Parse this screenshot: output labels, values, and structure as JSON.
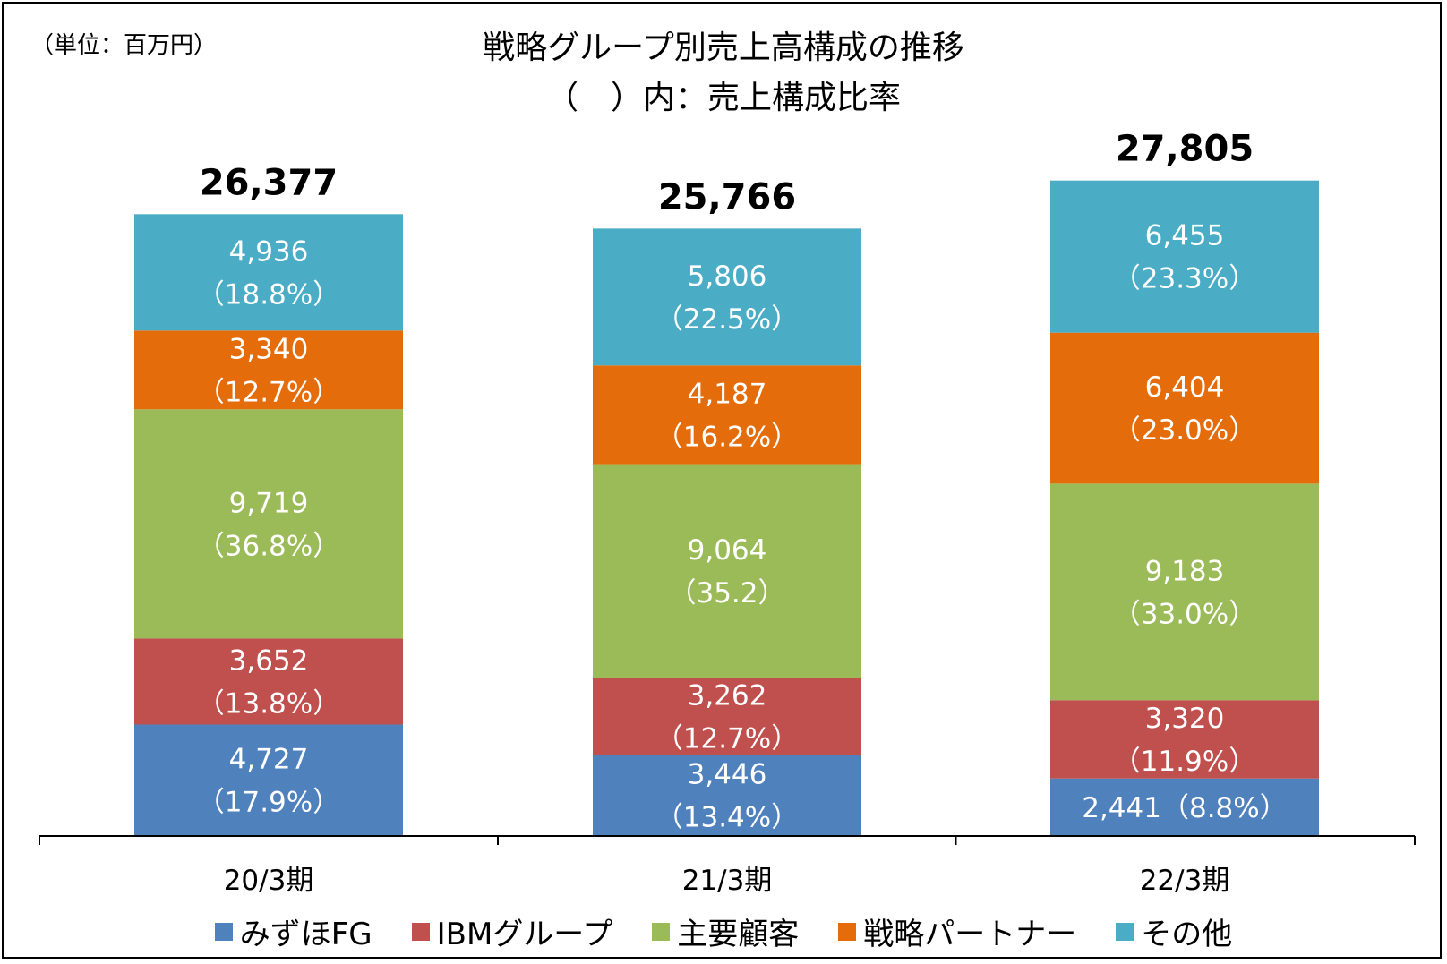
{
  "unit_label": "（単位：百万円）",
  "title_line1": "戦略グループ別売上高構成の推移",
  "title_line2": "（　）内：売上構成比率",
  "chart_data": {
    "type": "bar",
    "stacked": true,
    "categories": [
      "20/3期",
      "21/3期",
      "22/3期"
    ],
    "totals": [
      "26,377",
      "25,766",
      "27,805"
    ],
    "ylim": [
      0,
      28000
    ],
    "legend_position": "bottom",
    "grid": false,
    "series": [
      {
        "name": "みずほFG",
        "color": "#4f81bd",
        "values": [
          4727,
          3446,
          2441
        ],
        "labels": [
          [
            "4,727",
            "（17.9%）"
          ],
          [
            "3,446",
            "（13.4%）"
          ],
          [
            "2,441（8.8%）"
          ]
        ]
      },
      {
        "name": "IBMグループ",
        "color": "#c0504d",
        "values": [
          3652,
          3262,
          3320
        ],
        "labels": [
          [
            "3,652",
            "（13.8%）"
          ],
          [
            "3,262",
            "（12.7%）"
          ],
          [
            "3,320",
            "（11.9%）"
          ]
        ]
      },
      {
        "name": "主要顧客",
        "color": "#9bbb59",
        "values": [
          9719,
          9064,
          9183
        ],
        "labels": [
          [
            "9,719",
            "（36.8%）"
          ],
          [
            "9,064",
            "（35.2）"
          ],
          [
            "9,183",
            "（33.0%）"
          ]
        ]
      },
      {
        "name": "戦略パートナー",
        "color": "#e46c0a",
        "values": [
          3340,
          4187,
          6404
        ],
        "labels": [
          [
            "3,340",
            "（12.7%）"
          ],
          [
            "4,187",
            "（16.2%）"
          ],
          [
            "6,404",
            "（23.0%）"
          ]
        ]
      },
      {
        "name": "その他",
        "color": "#4bacc6",
        "values": [
          4936,
          5806,
          6455
        ],
        "labels": [
          [
            "4,936",
            "（18.8%）"
          ],
          [
            "5,806",
            "（22.5%）"
          ],
          [
            "6,455",
            "（23.3%）"
          ]
        ]
      }
    ]
  }
}
